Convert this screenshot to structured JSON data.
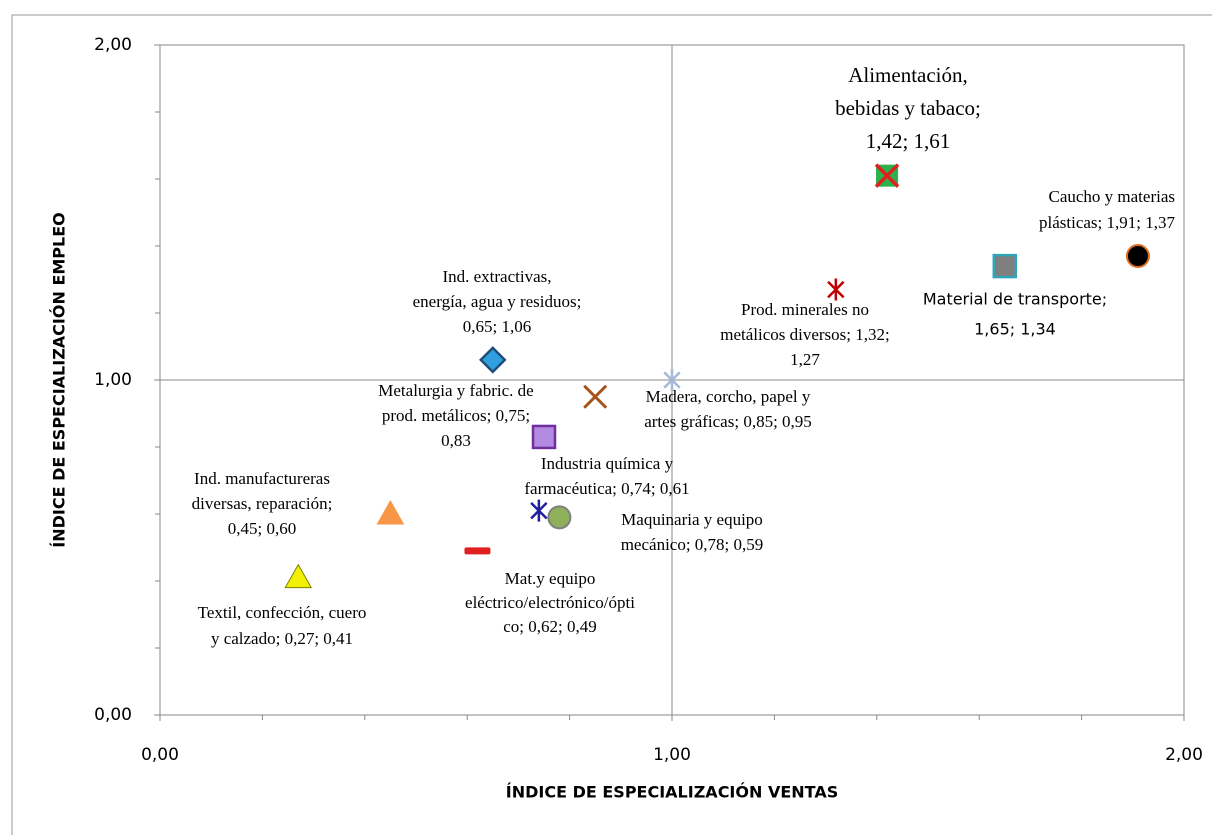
{
  "chart_data": {
    "type": "scatter",
    "xlabel": "ÍNDICE DE ESPECIALIZACIÓN VENTAS",
    "ylabel": "ÍNDICE DE ESPECIALIZACIÓN EMPLEO",
    "xlim": [
      0,
      2
    ],
    "ylim": [
      0,
      2
    ],
    "xticks": [
      {
        "value": 0,
        "label": "0,00"
      },
      {
        "value": 1,
        "label": "1,00"
      },
      {
        "value": 2,
        "label": "2,00"
      }
    ],
    "yticks": [
      {
        "value": 0,
        "label": "0,00"
      },
      {
        "value": 1,
        "label": "1,00"
      },
      {
        "value": 2,
        "label": "2,00"
      }
    ],
    "xminorticks": [
      0.2,
      0.4,
      0.6,
      0.8,
      1.2,
      1.4,
      1.6,
      1.8
    ],
    "yminorticks": [
      0.2,
      0.4,
      0.6,
      0.8,
      1.2,
      1.4,
      1.6,
      1.8
    ],
    "grid": true,
    "series": [
      {
        "x": [
          1.42
        ],
        "values": [
          1.61
        ],
        "marker": "square-x",
        "color": "#2bb24c",
        "edge": "#e02020",
        "labels": [
          "Alimentación,",
          "bebidas y tabaco;",
          "1,42; 1,61"
        ]
      },
      {
        "x": [
          1.91
        ],
        "values": [
          1.37
        ],
        "marker": "circle",
        "color": "#000000",
        "edge": "#e07020",
        "labels": [
          "Caucho y materias",
          "plásticas; 1,91; 1,37"
        ]
      },
      {
        "x": [
          1.65
        ],
        "values": [
          1.34
        ],
        "marker": "square",
        "color": "#7f7f7f",
        "edge": "#31a5b8",
        "labels": [
          "Material de transporte;",
          "1,65; 1,34"
        ]
      },
      {
        "x": [
          1.32
        ],
        "values": [
          1.27
        ],
        "marker": "asterisk",
        "color": "#c00000",
        "edge": "#c00000",
        "labels": [
          "Prod. minerales no",
          "metálicos diversos; 1,32;",
          "1,27"
        ]
      },
      {
        "x": [
          0.65
        ],
        "values": [
          1.06
        ],
        "marker": "diamond",
        "color": "#2f9fe0",
        "edge": "#1f4e79",
        "labels": [
          "Ind. extractivas,",
          "energía, agua y residuos;",
          "0,65; 1,06"
        ]
      },
      {
        "x": [
          0.85
        ],
        "values": [
          0.95
        ],
        "marker": "x",
        "color": "#a5521b",
        "edge": "#a5521b",
        "labels": [
          "Madera, corcho, papel y",
          "artes gráficas; 0,85; 0,95"
        ]
      },
      {
        "x": [
          0.75
        ],
        "values": [
          0.83
        ],
        "marker": "square",
        "color": "#b38be0",
        "edge": "#7030a0",
        "labels": [
          "Metalurgia y fabric. de",
          "prod. metálicos; 0,75;",
          "0,83"
        ]
      },
      {
        "x": [
          0.74
        ],
        "values": [
          0.61
        ],
        "marker": "asterisk",
        "color": "#1f1fa0",
        "edge": "#1f1fa0",
        "labels": [
          "Industria química y",
          "farmacéutica; 0,74; 0,61"
        ]
      },
      {
        "x": [
          0.78
        ],
        "values": [
          0.59
        ],
        "marker": "circle",
        "color": "#8fb05a",
        "edge": "#7f7f7f",
        "labels": [
          "Maquinaria y equipo",
          "mecánico; 0,78; 0,59"
        ]
      },
      {
        "x": [
          0.45
        ],
        "values": [
          0.6
        ],
        "marker": "triangle",
        "color": "#f79646",
        "edge": "#f79646",
        "labels": [
          "Ind. manufactureras",
          "diversas, reparación;",
          "0,45; 0,60"
        ]
      },
      {
        "x": [
          0.62
        ],
        "values": [
          0.49
        ],
        "marker": "dash",
        "color": "#e02020",
        "edge": "#e02020",
        "labels": [
          "Mat.y equipo",
          "eléctrico/electrónico/ópti",
          "co; 0,62; 0,49"
        ]
      },
      {
        "x": [
          0.27
        ],
        "values": [
          0.41
        ],
        "marker": "triangle",
        "color": "#f0f000",
        "edge": "#808000",
        "labels": [
          "Textil, confección, cuero",
          "y calzado; 0,27; 0,41"
        ]
      },
      {
        "x": [
          1.0
        ],
        "values": [
          1.0
        ],
        "marker": "asterisk",
        "color": "#a6b8d8",
        "edge": "#a6b8d8"
      }
    ]
  }
}
